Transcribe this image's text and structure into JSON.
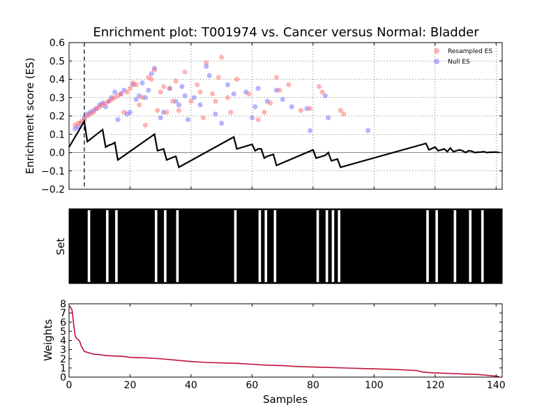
{
  "chart_data": [
    {
      "type": "scatter+line",
      "title": "Enrichment plot: T001974 vs. Cancer versus Normal: Bladder",
      "xlabel": "",
      "ylabel": "Enrichment score (ES)",
      "xlim": [
        0,
        142
      ],
      "ylim": [
        -0.2,
        0.6
      ],
      "yticks": [
        -0.2,
        -0.1,
        0.0,
        0.1,
        0.2,
        0.3,
        0.4,
        0.5,
        0.6
      ],
      "ytick_labels": [
        "−0.2",
        "−0.1",
        "0.0",
        "0.1",
        "0.2",
        "0.3",
        "0.4",
        "0.5",
        "0.6"
      ],
      "xticks": [
        0,
        20,
        40,
        60,
        80,
        100,
        120,
        140
      ],
      "grid": true,
      "legend_position": "top-right",
      "legend": [
        "Resampled ES",
        "Null ES"
      ],
      "dashed_vline_x": 5,
      "colors": {
        "resampled": "#ff6b6b",
        "null": "#6b6bff",
        "es_line": "#000000"
      },
      "es_curve": {
        "x": [
          0,
          5,
          6,
          11,
          12,
          13,
          14,
          15,
          16,
          28,
          29,
          31,
          32,
          35,
          36,
          54,
          55,
          60,
          61,
          62,
          63,
          64,
          65,
          67,
          68,
          80,
          81,
          84,
          85,
          86,
          87,
          88,
          89,
          117,
          118,
          120,
          121,
          122,
          123,
          124,
          125,
          126,
          127,
          128,
          129,
          130,
          131,
          132,
          133,
          134,
          135,
          136,
          137,
          138,
          139,
          140,
          141
        ],
        "y": [
          0.03,
          0.17,
          0.06,
          0.125,
          0.03,
          0.04,
          0.045,
          0.055,
          -0.04,
          0.1,
          0.01,
          0.02,
          -0.04,
          -0.02,
          -0.08,
          0.085,
          0.02,
          0.045,
          0.01,
          0.02,
          0.02,
          -0.03,
          -0.02,
          -0.01,
          -0.07,
          0.015,
          -0.03,
          -0.015,
          0.0,
          -0.045,
          -0.04,
          -0.035,
          -0.08,
          0.05,
          0.015,
          0.03,
          0.01,
          0.015,
          0.02,
          0.005,
          0.025,
          0.005,
          0.01,
          0.015,
          0.01,
          0.0,
          0.01,
          0.008,
          0.0,
          0.002,
          0.003,
          0.005,
          0.0,
          0.002,
          0.002,
          0.003,
          0.0
        ]
      },
      "resampled_es": {
        "x": [
          2,
          3,
          4,
          5,
          6,
          7,
          8,
          9,
          10,
          11,
          12,
          13,
          14,
          15,
          16,
          17,
          18,
          19,
          20,
          21,
          22,
          23,
          24,
          25,
          26,
          27,
          28,
          29,
          30,
          31,
          32,
          33,
          34,
          35,
          36,
          38,
          40,
          42,
          43,
          44,
          45,
          47,
          48,
          49,
          50,
          52,
          53,
          55,
          59,
          62,
          64,
          66,
          68,
          69,
          72,
          76,
          79,
          82,
          83,
          89,
          90
        ],
        "y": [
          0.15,
          0.16,
          0.17,
          0.18,
          0.2,
          0.21,
          0.22,
          0.24,
          0.25,
          0.26,
          0.27,
          0.28,
          0.29,
          0.3,
          0.31,
          0.32,
          0.22,
          0.33,
          0.35,
          0.38,
          0.37,
          0.26,
          0.3,
          0.15,
          0.41,
          0.4,
          0.45,
          0.23,
          0.33,
          0.36,
          0.22,
          0.35,
          0.28,
          0.39,
          0.23,
          0.44,
          0.28,
          0.37,
          0.33,
          0.19,
          0.49,
          0.32,
          0.28,
          0.41,
          0.52,
          0.3,
          0.22,
          0.4,
          0.32,
          0.18,
          0.22,
          0.27,
          0.41,
          0.34,
          0.37,
          0.23,
          0.24,
          0.36,
          0.33,
          0.23,
          0.21
        ]
      },
      "null_es": {
        "x": [
          2,
          3,
          4,
          5,
          6,
          7,
          8,
          9,
          10,
          11,
          12,
          13,
          14,
          15,
          16,
          17,
          18,
          19,
          20,
          21,
          22,
          23,
          24,
          25,
          26,
          27,
          28,
          30,
          31,
          33,
          35,
          36,
          37,
          38,
          39,
          41,
          43,
          45,
          46,
          48,
          50,
          52,
          54,
          58,
          60,
          61,
          62,
          65,
          68,
          70,
          73,
          78,
          79,
          84,
          85,
          98
        ],
        "y": [
          0.13,
          0.14,
          0.16,
          0.19,
          0.21,
          0.22,
          0.23,
          0.24,
          0.26,
          0.27,
          0.25,
          0.28,
          0.3,
          0.33,
          0.18,
          0.32,
          0.34,
          0.21,
          0.22,
          0.37,
          0.29,
          0.31,
          0.38,
          0.3,
          0.34,
          0.43,
          0.46,
          0.19,
          0.22,
          0.35,
          0.28,
          0.26,
          0.36,
          0.31,
          0.18,
          0.3,
          0.26,
          0.47,
          0.42,
          0.21,
          0.16,
          0.37,
          0.32,
          0.33,
          0.19,
          0.25,
          0.35,
          0.28,
          0.34,
          0.29,
          0.25,
          0.24,
          0.12,
          0.31,
          0.19,
          0.12
        ]
      }
    },
    {
      "type": "barcode",
      "ylabel": "Set",
      "xlim": [
        0,
        142
      ],
      "positions": [
        6,
        12,
        15,
        28,
        31,
        35,
        54,
        62,
        64,
        67,
        81,
        84,
        86,
        88,
        117,
        120,
        126,
        131,
        135
      ]
    },
    {
      "type": "line",
      "xlabel": "Samples",
      "ylabel": "Weights",
      "xlim": [
        0,
        142
      ],
      "ylim": [
        0,
        8
      ],
      "yticks": [
        0,
        1,
        2,
        3,
        4,
        5,
        6,
        7,
        8
      ],
      "xticks": [
        0,
        20,
        40,
        60,
        80,
        100,
        120,
        140
      ],
      "colors": {
        "line": "#c0103a"
      },
      "x": [
        0,
        0.5,
        1,
        1.5,
        2,
        2.5,
        3,
        3.5,
        4,
        5,
        6,
        8,
        10,
        12,
        15,
        18,
        20,
        25,
        30,
        35,
        40,
        45,
        50,
        55,
        60,
        65,
        70,
        75,
        80,
        85,
        90,
        95,
        100,
        105,
        110,
        114,
        116,
        118,
        120,
        125,
        130,
        134,
        137,
        140,
        141
      ],
      "y": [
        7.8,
        7.6,
        7.3,
        5.8,
        4.5,
        4.2,
        4.1,
        3.9,
        3.4,
        2.8,
        2.7,
        2.5,
        2.45,
        2.35,
        2.3,
        2.25,
        2.15,
        2.1,
        2.0,
        1.85,
        1.7,
        1.6,
        1.55,
        1.5,
        1.4,
        1.3,
        1.25,
        1.15,
        1.1,
        1.05,
        1.0,
        0.95,
        0.9,
        0.85,
        0.78,
        0.72,
        0.55,
        0.5,
        0.45,
        0.4,
        0.33,
        0.28,
        0.2,
        0.1,
        0.05
      ]
    }
  ]
}
